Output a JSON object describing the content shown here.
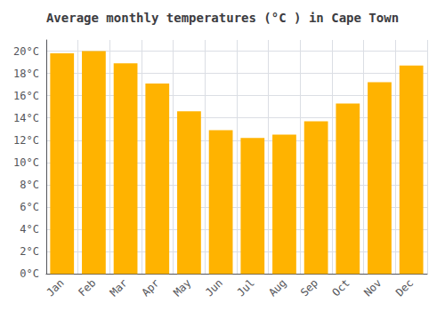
{
  "chart_data": {
    "type": "bar",
    "title": "Average monthly temperatures (°C ) in Cape Town",
    "categories": [
      "Jan",
      "Feb",
      "Mar",
      "Apr",
      "May",
      "Jun",
      "Jul",
      "Aug",
      "Sep",
      "Oct",
      "Nov",
      "Dec"
    ],
    "values": [
      19.8,
      20.0,
      18.9,
      17.1,
      14.6,
      12.9,
      12.2,
      12.5,
      13.7,
      15.3,
      17.2,
      18.7
    ],
    "color": "#FFB300",
    "ylim": [
      0,
      21
    ],
    "yticks": [
      {
        "value": 0,
        "label": "0°C"
      },
      {
        "value": 2,
        "label": "2°C"
      },
      {
        "value": 4,
        "label": "4°C"
      },
      {
        "value": 6,
        "label": "6°C"
      },
      {
        "value": 8,
        "label": "8°C"
      },
      {
        "value": 10,
        "label": "10°C"
      },
      {
        "value": 12,
        "label": "12°C"
      },
      {
        "value": 14,
        "label": "14°C"
      },
      {
        "value": 16,
        "label": "16°C"
      },
      {
        "value": 18,
        "label": "18°C"
      },
      {
        "value": 20,
        "label": "20°C"
      }
    ],
    "grid": true
  }
}
